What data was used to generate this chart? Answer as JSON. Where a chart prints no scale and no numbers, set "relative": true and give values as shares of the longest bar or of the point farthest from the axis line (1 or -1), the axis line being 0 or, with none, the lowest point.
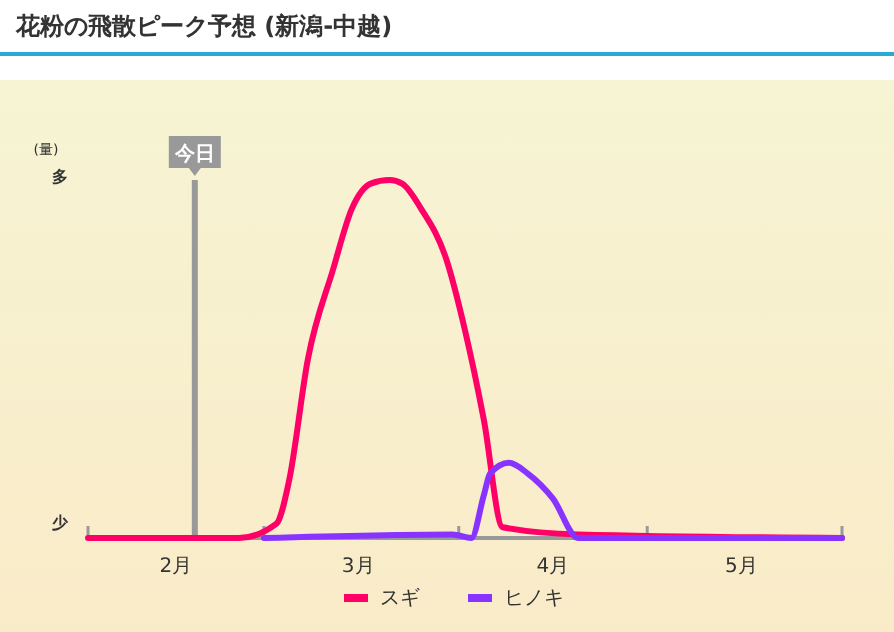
{
  "chart_data": {
    "type": "line",
    "title": "花粉の飛散ピーク予想 (新潟-中越)",
    "ylabel": "(量)",
    "relative": true,
    "annotations": [
      "多",
      "少"
    ],
    "xlim": [
      "--02-01",
      "--06-01"
    ],
    "xticks": [
      {
        "value": "--02-01",
        "label": null
      },
      {
        "value": "--02-15",
        "label": "2月"
      },
      {
        "value": "--03-01",
        "label": null
      },
      {
        "value": "--03-16",
        "label": "3月"
      },
      {
        "value": "--04-01",
        "label": null
      },
      {
        "value": "--04-16",
        "label": "4月"
      },
      {
        "value": "--05-01",
        "label": null
      },
      {
        "value": "--05-16",
        "label": "5月"
      },
      {
        "value": "--06-01",
        "label": null
      }
    ],
    "ref_lines": [
      {
        "axis": "x",
        "value": "--02-18",
        "label": "今日",
        "color": "#999999"
      }
    ],
    "legend": "bottom",
    "series": [
      {
        "name": "スギ",
        "color": "#ff0066",
        "x": [
          "--02-01",
          "--02-25",
          "--03-03",
          "--03-05",
          "--03-08",
          "--03-12",
          "--03-15",
          "--03-18",
          "--03-21",
          "--03-23",
          "--03-26",
          "--03-30",
          "--04-02",
          "--04-05",
          "--04-08",
          "--04-20",
          "--06-01"
        ],
        "values": [
          0,
          0,
          0.04,
          0.16,
          0.5,
          0.75,
          0.92,
          0.99,
          1,
          0.99,
          0.92,
          0.78,
          0.58,
          0.33,
          0.03,
          0.01,
          0
        ]
      },
      {
        "name": "ヒノキ",
        "color": "#8833ff",
        "x": [
          "--03-01",
          "--03-31",
          "--04-03",
          "--04-05",
          "--04-06",
          "--04-09",
          "--04-12",
          "--04-16",
          "--04-20",
          "--06-01"
        ],
        "values": [
          0,
          0.01,
          0,
          0.12,
          0.18,
          0.21,
          0.18,
          0.11,
          0,
          0
        ]
      }
    ]
  }
}
